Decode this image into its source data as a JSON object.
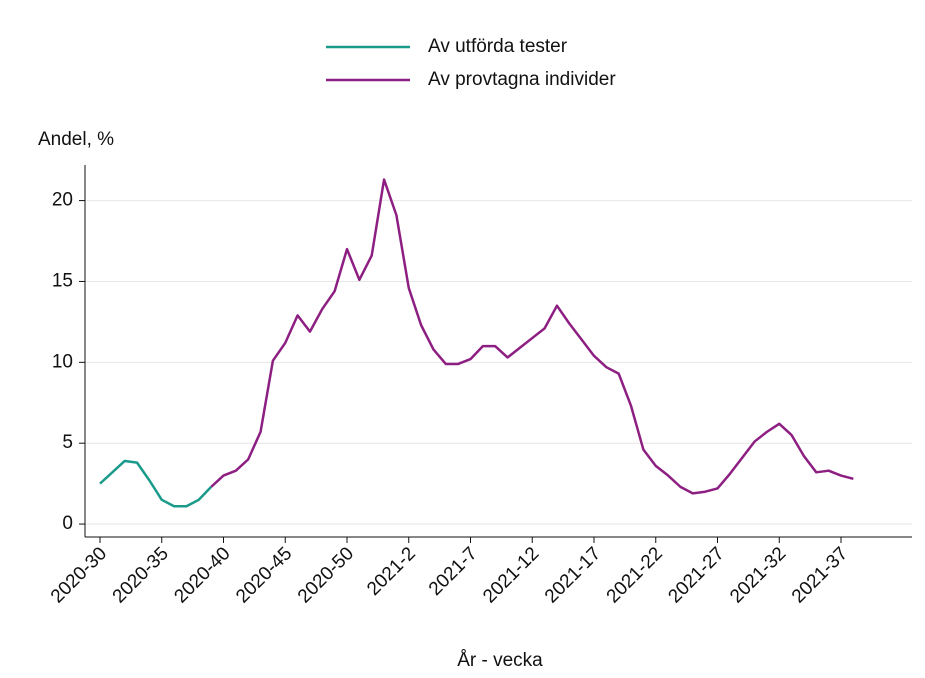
{
  "chart_data": {
    "type": "line",
    "y_label": "Andel, %",
    "x_label": "År - vecka",
    "categories": [
      "2020-30",
      null,
      null,
      null,
      null,
      "2020-35",
      null,
      null,
      null,
      null,
      "2020-40",
      null,
      null,
      null,
      null,
      "2020-45",
      null,
      null,
      null,
      null,
      "2020-50",
      null,
      null,
      null,
      null,
      "2021-2",
      null,
      null,
      null,
      null,
      "2021-7",
      null,
      null,
      null,
      null,
      "2021-12",
      null,
      null,
      null,
      null,
      "2021-17",
      null,
      null,
      null,
      null,
      "2021-22",
      null,
      null,
      null,
      null,
      "2021-27",
      null,
      null,
      null,
      null,
      "2021-32",
      null,
      null,
      null,
      null,
      "2021-37",
      null
    ],
    "series": [
      {
        "name": "Av utförda tester",
        "color": "#1a9a8a",
        "values": [
          2.5,
          3.2,
          3.9,
          3.8,
          2.7,
          1.5,
          1.1,
          1.1,
          1.5,
          2.3,
          null,
          null,
          null,
          null,
          null,
          null,
          null,
          null,
          null,
          null,
          null,
          null,
          null,
          null,
          null,
          null,
          null,
          null,
          null,
          null,
          null,
          null,
          null,
          null,
          null,
          null,
          null,
          null,
          null,
          null,
          null,
          null,
          null,
          null,
          null,
          null,
          null,
          null,
          null,
          null,
          null,
          null,
          null,
          null,
          null,
          null,
          null,
          null,
          null,
          null,
          null,
          null
        ]
      },
      {
        "name": "Av provtagna individer",
        "color": "#8e1f82",
        "values": [
          null,
          null,
          null,
          null,
          null,
          null,
          null,
          null,
          null,
          2.3,
          3.0,
          3.3,
          4.0,
          5.7,
          10.1,
          11.2,
          12.9,
          11.9,
          13.3,
          14.4,
          17.0,
          15.1,
          16.6,
          21.3,
          19.1,
          14.6,
          12.3,
          10.8,
          9.9,
          9.9,
          10.2,
          11.0,
          11.0,
          10.3,
          10.9,
          11.5,
          12.1,
          13.5,
          12.4,
          11.4,
          10.4,
          9.7,
          9.3,
          7.3,
          4.6,
          3.6,
          3.0,
          2.3,
          1.9,
          2.0,
          2.2,
          3.1,
          4.1,
          5.1,
          5.7,
          6.2,
          5.5,
          4.2,
          3.2,
          3.3,
          3.0,
          2.8
        ]
      }
    ],
    "ylim": [
      -0.8,
      22.2
    ],
    "yticks": [
      0,
      5,
      10,
      15,
      20
    ],
    "grid": true
  }
}
